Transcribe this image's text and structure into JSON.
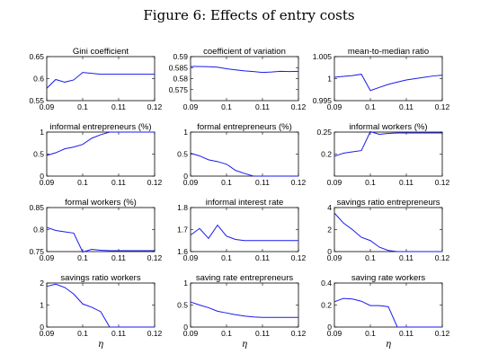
{
  "figure": {
    "title": "Figure 6: Effects of entry costs"
  },
  "chart_data": [
    {
      "type": "line",
      "title": "Gini coefficient",
      "xlabel": "",
      "ylabel": "",
      "xlim": [
        0.09,
        0.12
      ],
      "ylim": [
        0.55,
        0.65
      ],
      "xticks": [
        "0.09",
        "0.1",
        "0.11",
        "0.12"
      ],
      "yticks": [
        "0.55",
        "0.6",
        "0.65"
      ],
      "x": [
        0.09,
        0.0925,
        0.095,
        0.0975,
        0.1,
        0.1025,
        0.105,
        0.1075,
        0.11,
        0.1125,
        0.115,
        0.1175,
        0.12
      ],
      "y": [
        0.578,
        0.598,
        0.592,
        0.597,
        0.614,
        0.612,
        0.61,
        0.61,
        0.61,
        0.61,
        0.61,
        0.61,
        0.61
      ]
    },
    {
      "type": "line",
      "title": "coefficient of variation",
      "xlabel": "",
      "ylabel": "",
      "xlim": [
        0.09,
        0.12
      ],
      "ylim": [
        0.57,
        0.59
      ],
      "xticks": [
        "0.09",
        "0.1",
        "0.11",
        "0.12"
      ],
      "yticks": [
        "0.575",
        "0.58",
        "0.585",
        "0.59"
      ],
      "x": [
        0.09,
        0.0925,
        0.095,
        0.0975,
        0.1,
        0.1025,
        0.105,
        0.1075,
        0.11,
        0.1125,
        0.115,
        0.1175,
        0.12
      ],
      "y": [
        0.5855,
        0.5855,
        0.5854,
        0.5852,
        0.5845,
        0.584,
        0.5835,
        0.5832,
        0.5828,
        0.583,
        0.5833,
        0.5832,
        0.5833
      ]
    },
    {
      "type": "line",
      "title": "mean-to-median ratio",
      "xlabel": "",
      "ylabel": "",
      "xlim": [
        0.09,
        0.12
      ],
      "ylim": [
        0.995,
        1.005
      ],
      "xticks": [
        "0.09",
        "0.1",
        "0.11",
        "0.12"
      ],
      "yticks": [
        "0.995",
        "1",
        "1.005"
      ],
      "x": [
        0.09,
        0.0925,
        0.095,
        0.0975,
        0.1,
        0.1025,
        0.105,
        0.1075,
        0.11,
        0.1125,
        0.115,
        0.1175,
        0.12
      ],
      "y": [
        1.0003,
        1.0005,
        1.0007,
        1.001,
        0.9973,
        0.998,
        0.9987,
        0.9992,
        0.9997,
        1.0,
        1.0003,
        1.0006,
        1.0008
      ]
    },
    {
      "type": "line",
      "title": "informal entrepreneurs (%)",
      "xlabel": "",
      "ylabel": "",
      "xlim": [
        0.09,
        0.12
      ],
      "ylim": [
        0,
        1
      ],
      "xticks": [
        "0.09",
        "0.1",
        "0.11",
        "0.12"
      ],
      "yticks": [
        "0",
        "0.5",
        "1"
      ],
      "x": [
        0.09,
        0.0925,
        0.095,
        0.0975,
        0.1,
        0.1025,
        0.105,
        0.1075,
        0.11,
        0.1125,
        0.115,
        0.1175,
        0.12
      ],
      "y": [
        0.47,
        0.53,
        0.62,
        0.66,
        0.72,
        0.86,
        0.94,
        1.0,
        1.0,
        1.0,
        1.0,
        1.0,
        1.0
      ]
    },
    {
      "type": "line",
      "title": "formal entrepreneurs (%)",
      "xlabel": "",
      "ylabel": "",
      "xlim": [
        0.09,
        0.12
      ],
      "ylim": [
        0,
        1
      ],
      "xticks": [
        "0.09",
        "0.1",
        "0.11",
        "0.12"
      ],
      "yticks": [
        "0",
        "0.5",
        "1"
      ],
      "x": [
        0.09,
        0.0925,
        0.095,
        0.0975,
        0.1,
        0.1025,
        0.105,
        0.1075,
        0.11,
        0.1125,
        0.115,
        0.1175,
        0.12
      ],
      "y": [
        0.52,
        0.46,
        0.37,
        0.33,
        0.27,
        0.13,
        0.06,
        0.0,
        0.0,
        0.0,
        0.0,
        0.0,
        0.0
      ]
    },
    {
      "type": "line",
      "title": "informal workers (%)",
      "xlabel": "",
      "ylabel": "",
      "xlim": [
        0.09,
        0.12
      ],
      "ylim": [
        0.15,
        0.25
      ],
      "xticks": [
        "0.09",
        "0.1",
        "0.11",
        "0.12"
      ],
      "yticks": [
        "0.2",
        "0.25"
      ],
      "x": [
        0.09,
        0.0925,
        0.095,
        0.0975,
        0.1,
        0.1025,
        0.105,
        0.1075,
        0.11,
        0.1125,
        0.115,
        0.1175,
        0.12
      ],
      "y": [
        0.195,
        0.202,
        0.205,
        0.208,
        0.251,
        0.245,
        0.247,
        0.248,
        0.248,
        0.248,
        0.248,
        0.248,
        0.248
      ]
    },
    {
      "type": "line",
      "title": "formal workers (%)",
      "xlabel": "",
      "ylabel": "",
      "xlim": [
        0.09,
        0.12
      ],
      "ylim": [
        0.75,
        0.85
      ],
      "xticks": [
        "0.09",
        "0.1",
        "0.11",
        "0.12"
      ],
      "yticks": [
        "0.75",
        "0.8",
        "0.85"
      ],
      "x": [
        0.09,
        0.0925,
        0.095,
        0.0975,
        0.1,
        0.1025,
        0.105,
        0.1075,
        0.11,
        0.1125,
        0.115,
        0.1175,
        0.12
      ],
      "y": [
        0.805,
        0.798,
        0.795,
        0.792,
        0.749,
        0.755,
        0.753,
        0.752,
        0.752,
        0.752,
        0.752,
        0.752,
        0.752
      ]
    },
    {
      "type": "line",
      "title": "informal interest rate",
      "xlabel": "",
      "ylabel": "",
      "xlim": [
        0.09,
        0.12
      ],
      "ylim": [
        1.6,
        1.8
      ],
      "xticks": [
        "0.09",
        "0.1",
        "0.11",
        "0.12"
      ],
      "yticks": [
        "1.6",
        "1.7",
        "1.8"
      ],
      "x": [
        0.09,
        0.0925,
        0.095,
        0.0975,
        0.1,
        0.1025,
        0.105,
        0.1075,
        0.11,
        0.1125,
        0.115,
        0.1175,
        0.12
      ],
      "y": [
        1.675,
        1.705,
        1.66,
        1.72,
        1.67,
        1.655,
        1.65,
        1.65,
        1.65,
        1.65,
        1.65,
        1.65,
        1.65
      ]
    },
    {
      "type": "line",
      "title": "savings ratio entrepreneurs",
      "xlabel": "",
      "ylabel": "",
      "xlim": [
        0.09,
        0.12
      ],
      "ylim": [
        0,
        4
      ],
      "xticks": [
        "0.09",
        "0.1",
        "0.11",
        "0.12"
      ],
      "yticks": [
        "0",
        "2",
        "4"
      ],
      "x": [
        0.09,
        0.0925,
        0.095,
        0.0975,
        0.1,
        0.1025,
        0.105,
        0.1075,
        0.11,
        0.1125,
        0.115,
        0.1175,
        0.12
      ],
      "y": [
        3.5,
        2.6,
        2.0,
        1.3,
        1.0,
        0.4,
        0.1,
        0.0,
        0.0,
        0.0,
        0.0,
        0.0,
        0.0
      ]
    },
    {
      "type": "line",
      "title": "savings ratio workers",
      "xlabel": "η",
      "ylabel": "",
      "xlim": [
        0.09,
        0.12
      ],
      "ylim": [
        0,
        2
      ],
      "xticks": [
        "0.09",
        "0.1",
        "0.11",
        "0.12"
      ],
      "yticks": [
        "0",
        "1",
        "2"
      ],
      "x": [
        0.09,
        0.0925,
        0.095,
        0.0975,
        0.1,
        0.1025,
        0.105,
        0.1075,
        0.11,
        0.1125,
        0.115,
        0.1175,
        0.12
      ],
      "y": [
        1.85,
        1.95,
        1.8,
        1.5,
        1.05,
        0.9,
        0.7,
        0.0,
        0.0,
        0.0,
        0.0,
        0.0,
        0.0
      ]
    },
    {
      "type": "line",
      "title": "saving rate entrepreneurs",
      "xlabel": "η",
      "ylabel": "",
      "xlim": [
        0.09,
        0.12
      ],
      "ylim": [
        0,
        1
      ],
      "xticks": [
        "0.09",
        "0.1",
        "0.11",
        "0.12"
      ],
      "yticks": [
        "0",
        "0.5",
        "1"
      ],
      "x": [
        0.09,
        0.0925,
        0.095,
        0.0975,
        0.1,
        0.1025,
        0.105,
        0.1075,
        0.11,
        0.1125,
        0.115,
        0.1175,
        0.12
      ],
      "y": [
        0.57,
        0.5,
        0.44,
        0.36,
        0.32,
        0.28,
        0.25,
        0.23,
        0.22,
        0.22,
        0.22,
        0.22,
        0.22
      ]
    },
    {
      "type": "line",
      "title": "saving rate workers",
      "xlabel": "η",
      "ylabel": "",
      "xlim": [
        0.09,
        0.12
      ],
      "ylim": [
        0,
        0.4
      ],
      "xticks": [
        "0.09",
        "0.1",
        "0.11",
        "0.12"
      ],
      "yticks": [
        "0",
        "0.2",
        "0.4"
      ],
      "x": [
        0.09,
        0.0925,
        0.095,
        0.0975,
        0.1,
        0.1025,
        0.105,
        0.1075,
        0.11,
        0.1125,
        0.115,
        0.1175,
        0.12
      ],
      "y": [
        0.23,
        0.26,
        0.255,
        0.235,
        0.195,
        0.195,
        0.185,
        0.0,
        0.0,
        0.0,
        0.0,
        0.0,
        0.0
      ]
    }
  ]
}
